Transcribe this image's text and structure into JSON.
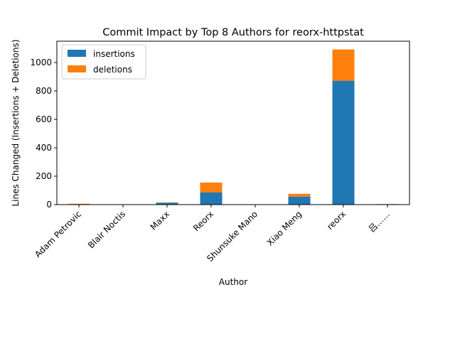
{
  "chart_data": {
    "type": "bar",
    "stacked": true,
    "title": "Commit Impact by Top 8 Authors for reorx-httpstat",
    "xlabel": "Author",
    "ylabel": "Lines Changed (Insertions + Deletions)",
    "categories": [
      "Adam Petrovic",
      "Blair Noctis",
      "Maxx",
      "Reorx",
      "Shunsuke Mano",
      "Xiao Meng",
      "reorx",
      "吕……"
    ],
    "series": [
      {
        "name": "insertions",
        "color": "#1f77b4",
        "values": [
          1,
          0,
          13,
          85,
          0,
          56,
          872,
          3
        ]
      },
      {
        "name": "deletions",
        "color": "#ff7f0e",
        "values": [
          5,
          0,
          2,
          70,
          0,
          20,
          220,
          1
        ]
      }
    ],
    "ylim": [
      0,
      1150
    ],
    "yticks": [
      0,
      200,
      400,
      600,
      800,
      1000
    ],
    "legend": "top-left",
    "grid": false
  }
}
